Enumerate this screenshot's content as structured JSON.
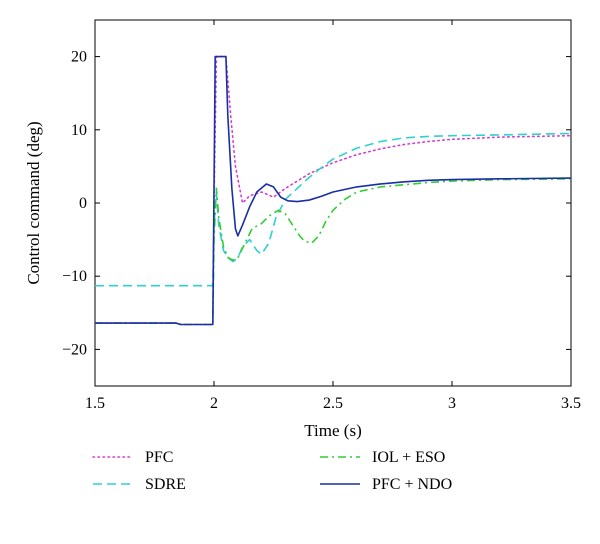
{
  "chart_data": {
    "type": "line",
    "xlabel": "Time (s)",
    "ylabel": "Control command (deg)",
    "xlim": [
      1.5,
      3.5
    ],
    "ylim": [
      -25,
      25
    ],
    "xticks": [
      "1.5",
      "2",
      "2.5",
      "3",
      "3.5"
    ],
    "yticks": [
      "−20",
      "−10",
      "0",
      "10",
      "20"
    ],
    "grid": false,
    "legend_position": "below",
    "series": [
      {
        "name": "PFC",
        "color": "#d040d0",
        "dash": "dotted",
        "x": [
          1.5,
          1.84,
          1.86,
          1.995,
          2.0,
          2.01,
          2.05,
          2.07,
          2.09,
          2.12,
          2.15,
          2.2,
          2.25,
          2.3,
          2.35,
          2.4,
          2.5,
          2.6,
          2.7,
          2.8,
          2.9,
          3.0,
          3.2,
          3.5
        ],
        "y": [
          -16.4,
          -16.4,
          -16.6,
          -16.6,
          0.0,
          20.0,
          20.0,
          12.0,
          5.0,
          0.0,
          1.0,
          1.5,
          0.8,
          2.0,
          3.0,
          4.0,
          5.5,
          6.6,
          7.4,
          8.0,
          8.4,
          8.7,
          9.0,
          9.2
        ]
      },
      {
        "name": "SDRE",
        "color": "#30d0d0",
        "dash": "dashed",
        "x": [
          1.5,
          1.995,
          2.0,
          2.01,
          2.02,
          2.04,
          2.06,
          2.08,
          2.1,
          2.12,
          2.15,
          2.18,
          2.2,
          2.23,
          2.26,
          2.3,
          2.35,
          2.4,
          2.45,
          2.5,
          2.6,
          2.7,
          2.8,
          2.9,
          3.0,
          3.2,
          3.5
        ],
        "y": [
          -11.3,
          -11.3,
          -3.0,
          1.5,
          -3.0,
          -6.5,
          -7.5,
          -8.0,
          -7.5,
          -6.0,
          -5.0,
          -6.5,
          -7.0,
          -5.5,
          -2.0,
          0.5,
          2.0,
          3.5,
          4.8,
          6.0,
          7.5,
          8.4,
          8.9,
          9.1,
          9.2,
          9.3,
          9.5
        ]
      },
      {
        "name": "IOL + ESO",
        "color": "#33cc33",
        "dash": "dashdot",
        "x": [
          1.5,
          1.84,
          1.86,
          1.995,
          2.0,
          2.01,
          2.02,
          2.04,
          2.06,
          2.08,
          2.1,
          2.13,
          2.16,
          2.2,
          2.23,
          2.27,
          2.3,
          2.33,
          2.36,
          2.38,
          2.41,
          2.44,
          2.47,
          2.5,
          2.55,
          2.6,
          2.7,
          2.8,
          2.9,
          3.0,
          3.2,
          3.5
        ],
        "y": [
          -16.4,
          -16.4,
          -16.6,
          -16.6,
          -5.0,
          2.0,
          -2.0,
          -6.0,
          -7.5,
          -7.8,
          -7.5,
          -5.5,
          -3.5,
          -2.8,
          -1.8,
          -1.0,
          -1.5,
          -3.0,
          -4.5,
          -5.2,
          -5.5,
          -4.5,
          -2.5,
          -1.0,
          0.5,
          1.5,
          2.2,
          2.5,
          2.8,
          3.0,
          3.2,
          3.3
        ]
      },
      {
        "name": "PFC + NDO",
        "color": "#1a2ea8",
        "dash": "solid",
        "x": [
          1.5,
          1.84,
          1.86,
          1.995,
          2.005,
          2.05,
          2.058,
          2.075,
          2.09,
          2.1,
          2.12,
          2.15,
          2.18,
          2.22,
          2.25,
          2.28,
          2.31,
          2.35,
          2.4,
          2.45,
          2.5,
          2.6,
          2.7,
          2.8,
          2.9,
          3.0,
          3.2,
          3.5
        ],
        "y": [
          -16.4,
          -16.4,
          -16.6,
          -16.6,
          20.0,
          20.0,
          12.0,
          2.0,
          -3.5,
          -4.5,
          -3.0,
          -0.5,
          1.5,
          2.6,
          2.2,
          0.8,
          0.3,
          0.2,
          0.4,
          0.9,
          1.5,
          2.2,
          2.6,
          2.9,
          3.1,
          3.2,
          3.3,
          3.4
        ]
      }
    ]
  }
}
